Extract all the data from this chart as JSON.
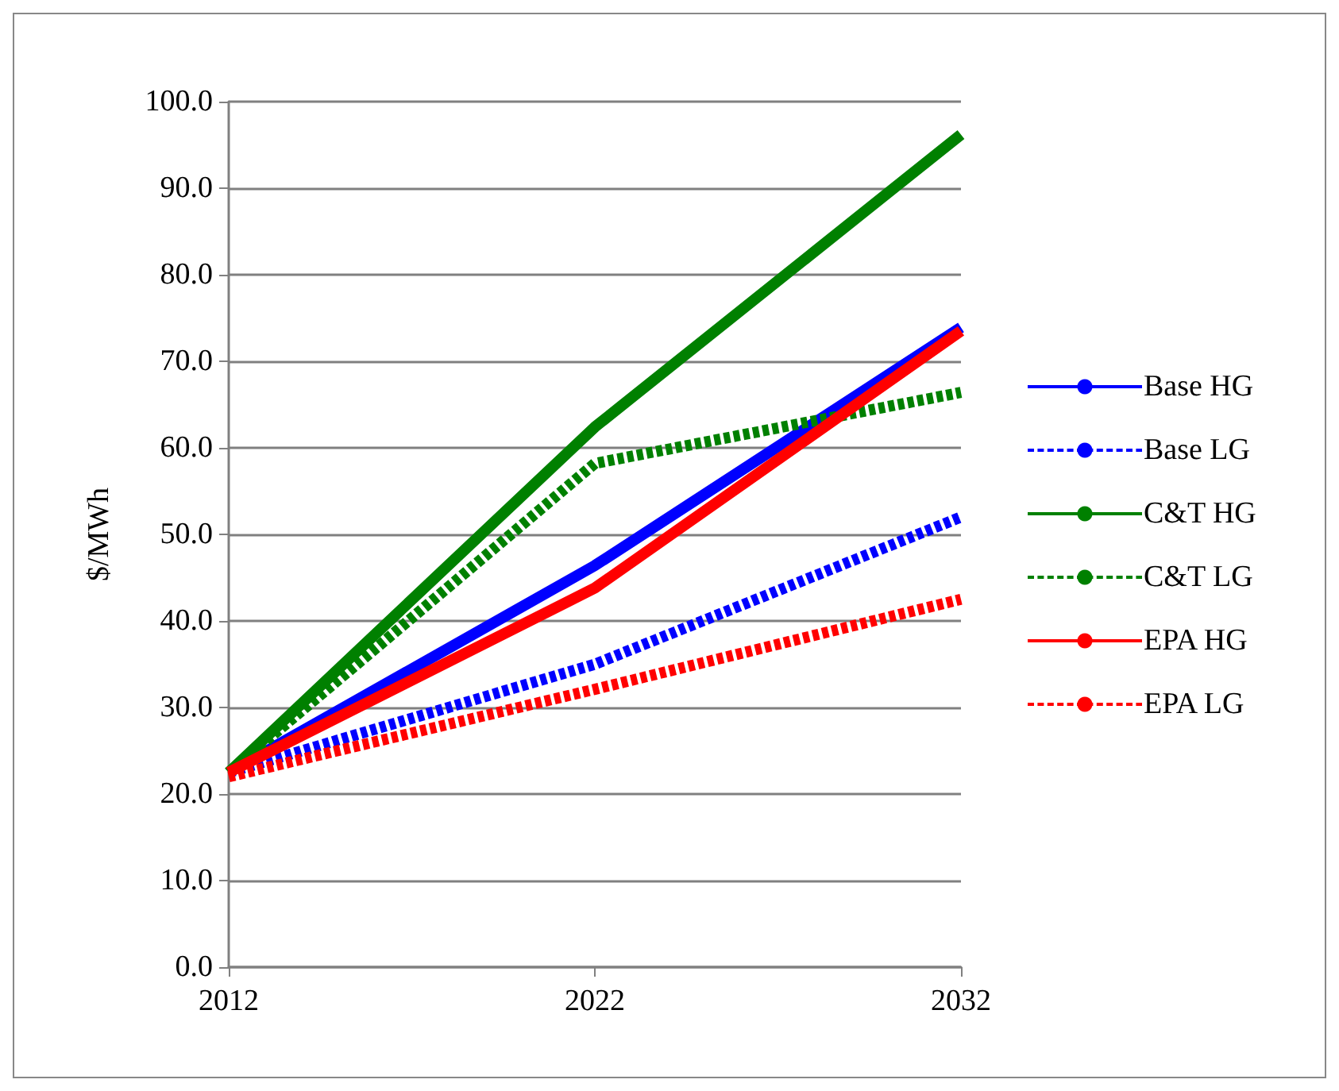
{
  "chart_data": {
    "type": "line",
    "ylabel": "$/MWh",
    "x": [
      2012,
      2022,
      2032
    ],
    "xlim": [
      2012,
      2032
    ],
    "xticks": [
      2012,
      2022,
      2032
    ],
    "ylim": [
      0,
      100
    ],
    "yticks": [
      {
        "value": 0,
        "label": "0.0"
      },
      {
        "value": 10,
        "label": "10.0"
      },
      {
        "value": 20,
        "label": "20.0"
      },
      {
        "value": 30,
        "label": "30.0"
      },
      {
        "value": 40,
        "label": "40.0"
      },
      {
        "value": 50,
        "label": "50.0"
      },
      {
        "value": 60,
        "label": "60.0"
      },
      {
        "value": 70,
        "label": "70.0"
      },
      {
        "value": 80,
        "label": "80.0"
      },
      {
        "value": 90,
        "label": "90.0"
      },
      {
        "value": 100,
        "label": "100.0"
      }
    ],
    "grid": "y",
    "legend": "right",
    "marker": "none",
    "series": [
      {
        "name": "Base HG",
        "color": "#0000ff",
        "line_style": "solid",
        "values": [
          22.5,
          46.4,
          73.9
        ]
      },
      {
        "name": "Base LG",
        "color": "#0000ff",
        "line_style": "dashed",
        "values": [
          22.5,
          35.0,
          52.0
        ]
      },
      {
        "name": "C&T HG",
        "color": "#008000",
        "line_style": "solid",
        "values": [
          22.5,
          62.4,
          96.2
        ]
      },
      {
        "name": "C&T LG",
        "color": "#008000",
        "line_style": "dashed",
        "values": [
          22.5,
          58.2,
          66.4
        ]
      },
      {
        "name": "EPA HG",
        "color": "#ff0000",
        "line_style": "solid",
        "values": [
          22.5,
          43.8,
          73.5
        ]
      },
      {
        "name": "EPA LG",
        "color": "#ff0000",
        "line_style": "dashed",
        "values": [
          22.0,
          32.1,
          42.5
        ]
      }
    ]
  }
}
